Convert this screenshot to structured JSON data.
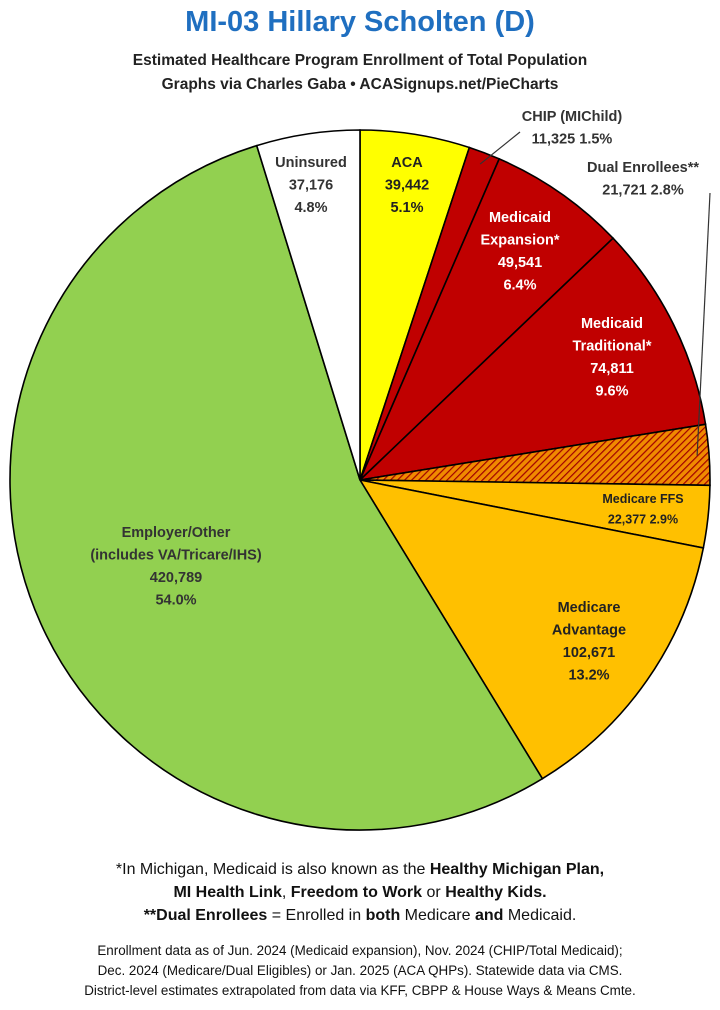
{
  "title": "MI-03 Hillary Scholten (D)",
  "subtitle": "Estimated Healthcare Program Enrollment of Total Population",
  "credit": "Graphs via Charles Gaba  •  ACASignups.net/PieCharts",
  "chart_data": {
    "type": "pie",
    "title": "MI-03 Hillary Scholten (D)",
    "start": "12 o'clock",
    "direction": "clockwise",
    "slices": [
      {
        "label": "ACA",
        "value": 39442,
        "percent": "5.1%",
        "value_text": "39,442",
        "color": "#ffff00",
        "label_lines": [
          "ACA",
          "39,442",
          "5.1%"
        ]
      },
      {
        "label": "CHIP (MIChild)",
        "value": 11325,
        "percent": "1.5%",
        "value_text": "11,325",
        "color": "#c00000",
        "label_lines": [
          "CHIP (MIChild)",
          "11,325 1.5%"
        ]
      },
      {
        "label": "Medicaid Expansion*",
        "value": 49541,
        "percent": "6.4%",
        "value_text": "49,541",
        "color": "#c00000",
        "label_lines": [
          "Medicaid",
          "Expansion*",
          "49,541",
          "6.4%"
        ]
      },
      {
        "label": "Medicaid Traditional*",
        "value": 74811,
        "percent": "9.6%",
        "value_text": "74,811",
        "color": "#c00000",
        "label_lines": [
          "Medicaid",
          "Traditional*",
          "74,811",
          "9.6%"
        ]
      },
      {
        "label": "Dual Enrollees**",
        "value": 21721,
        "percent": "2.8%",
        "value_text": "21,721",
        "color": "#e07000",
        "pattern": "hatched",
        "label_lines": [
          "Dual Enrollees**",
          "21,721 2.8%"
        ]
      },
      {
        "label": "Medicare FFS",
        "value": 22377,
        "percent": "2.9%",
        "value_text": "22,377",
        "color": "#ffc000",
        "label_lines": [
          "Medicare FFS",
          "22,377 2.9%"
        ]
      },
      {
        "label": "Medicare Advantage",
        "value": 102671,
        "percent": "13.2%",
        "value_text": "102,671",
        "color": "#ffc000",
        "label_lines": [
          "Medicare",
          "Advantage",
          "102,671",
          "13.2%"
        ]
      },
      {
        "label": "Employer/Other (includes VA/Tricare/IHS)",
        "value": 420789,
        "percent": "54.0%",
        "value_text": "420,789",
        "color": "#92d050",
        "label_lines": [
          "Employer/Other",
          "(includes VA/Tricare/IHS)",
          "420,789",
          "54.0%"
        ]
      },
      {
        "label": "Uninsured",
        "value": 37176,
        "percent": "4.8%",
        "value_text": "37,176",
        "color": "#ffffff",
        "label_lines": [
          "Uninsured",
          "37,176",
          "4.8%"
        ]
      }
    ]
  },
  "footnotes": {
    "line1_pre": "*In Michigan, Medicaid is also known as the ",
    "line1_bold": "Healthy Michigan Plan,",
    "line2_b1": "MI Health Link",
    "line2_t1": ", ",
    "line2_b2": "Freedom to Work",
    "line2_t2": " or ",
    "line2_b3": "Healthy Kids.",
    "line3_b1": "**Dual Enrollees",
    "line3_t1": " = Enrolled in ",
    "line3_b2": "both",
    "line3_t2": " Medicare ",
    "line3_b3": "and",
    "line3_t3": " Medicaid."
  },
  "sources": [
    "Enrollment data as of Jun. 2024 (Medicaid expansion), Nov. 2024 (CHIP/Total Medicaid);",
    "Dec. 2024 (Medicare/Dual Eligibles) or Jan. 2025 (ACA QHPs). Statewide data via CMS.",
    "District-level estimates extrapolated from data via KFF, CBPP & House Ways & Means Cmte."
  ]
}
